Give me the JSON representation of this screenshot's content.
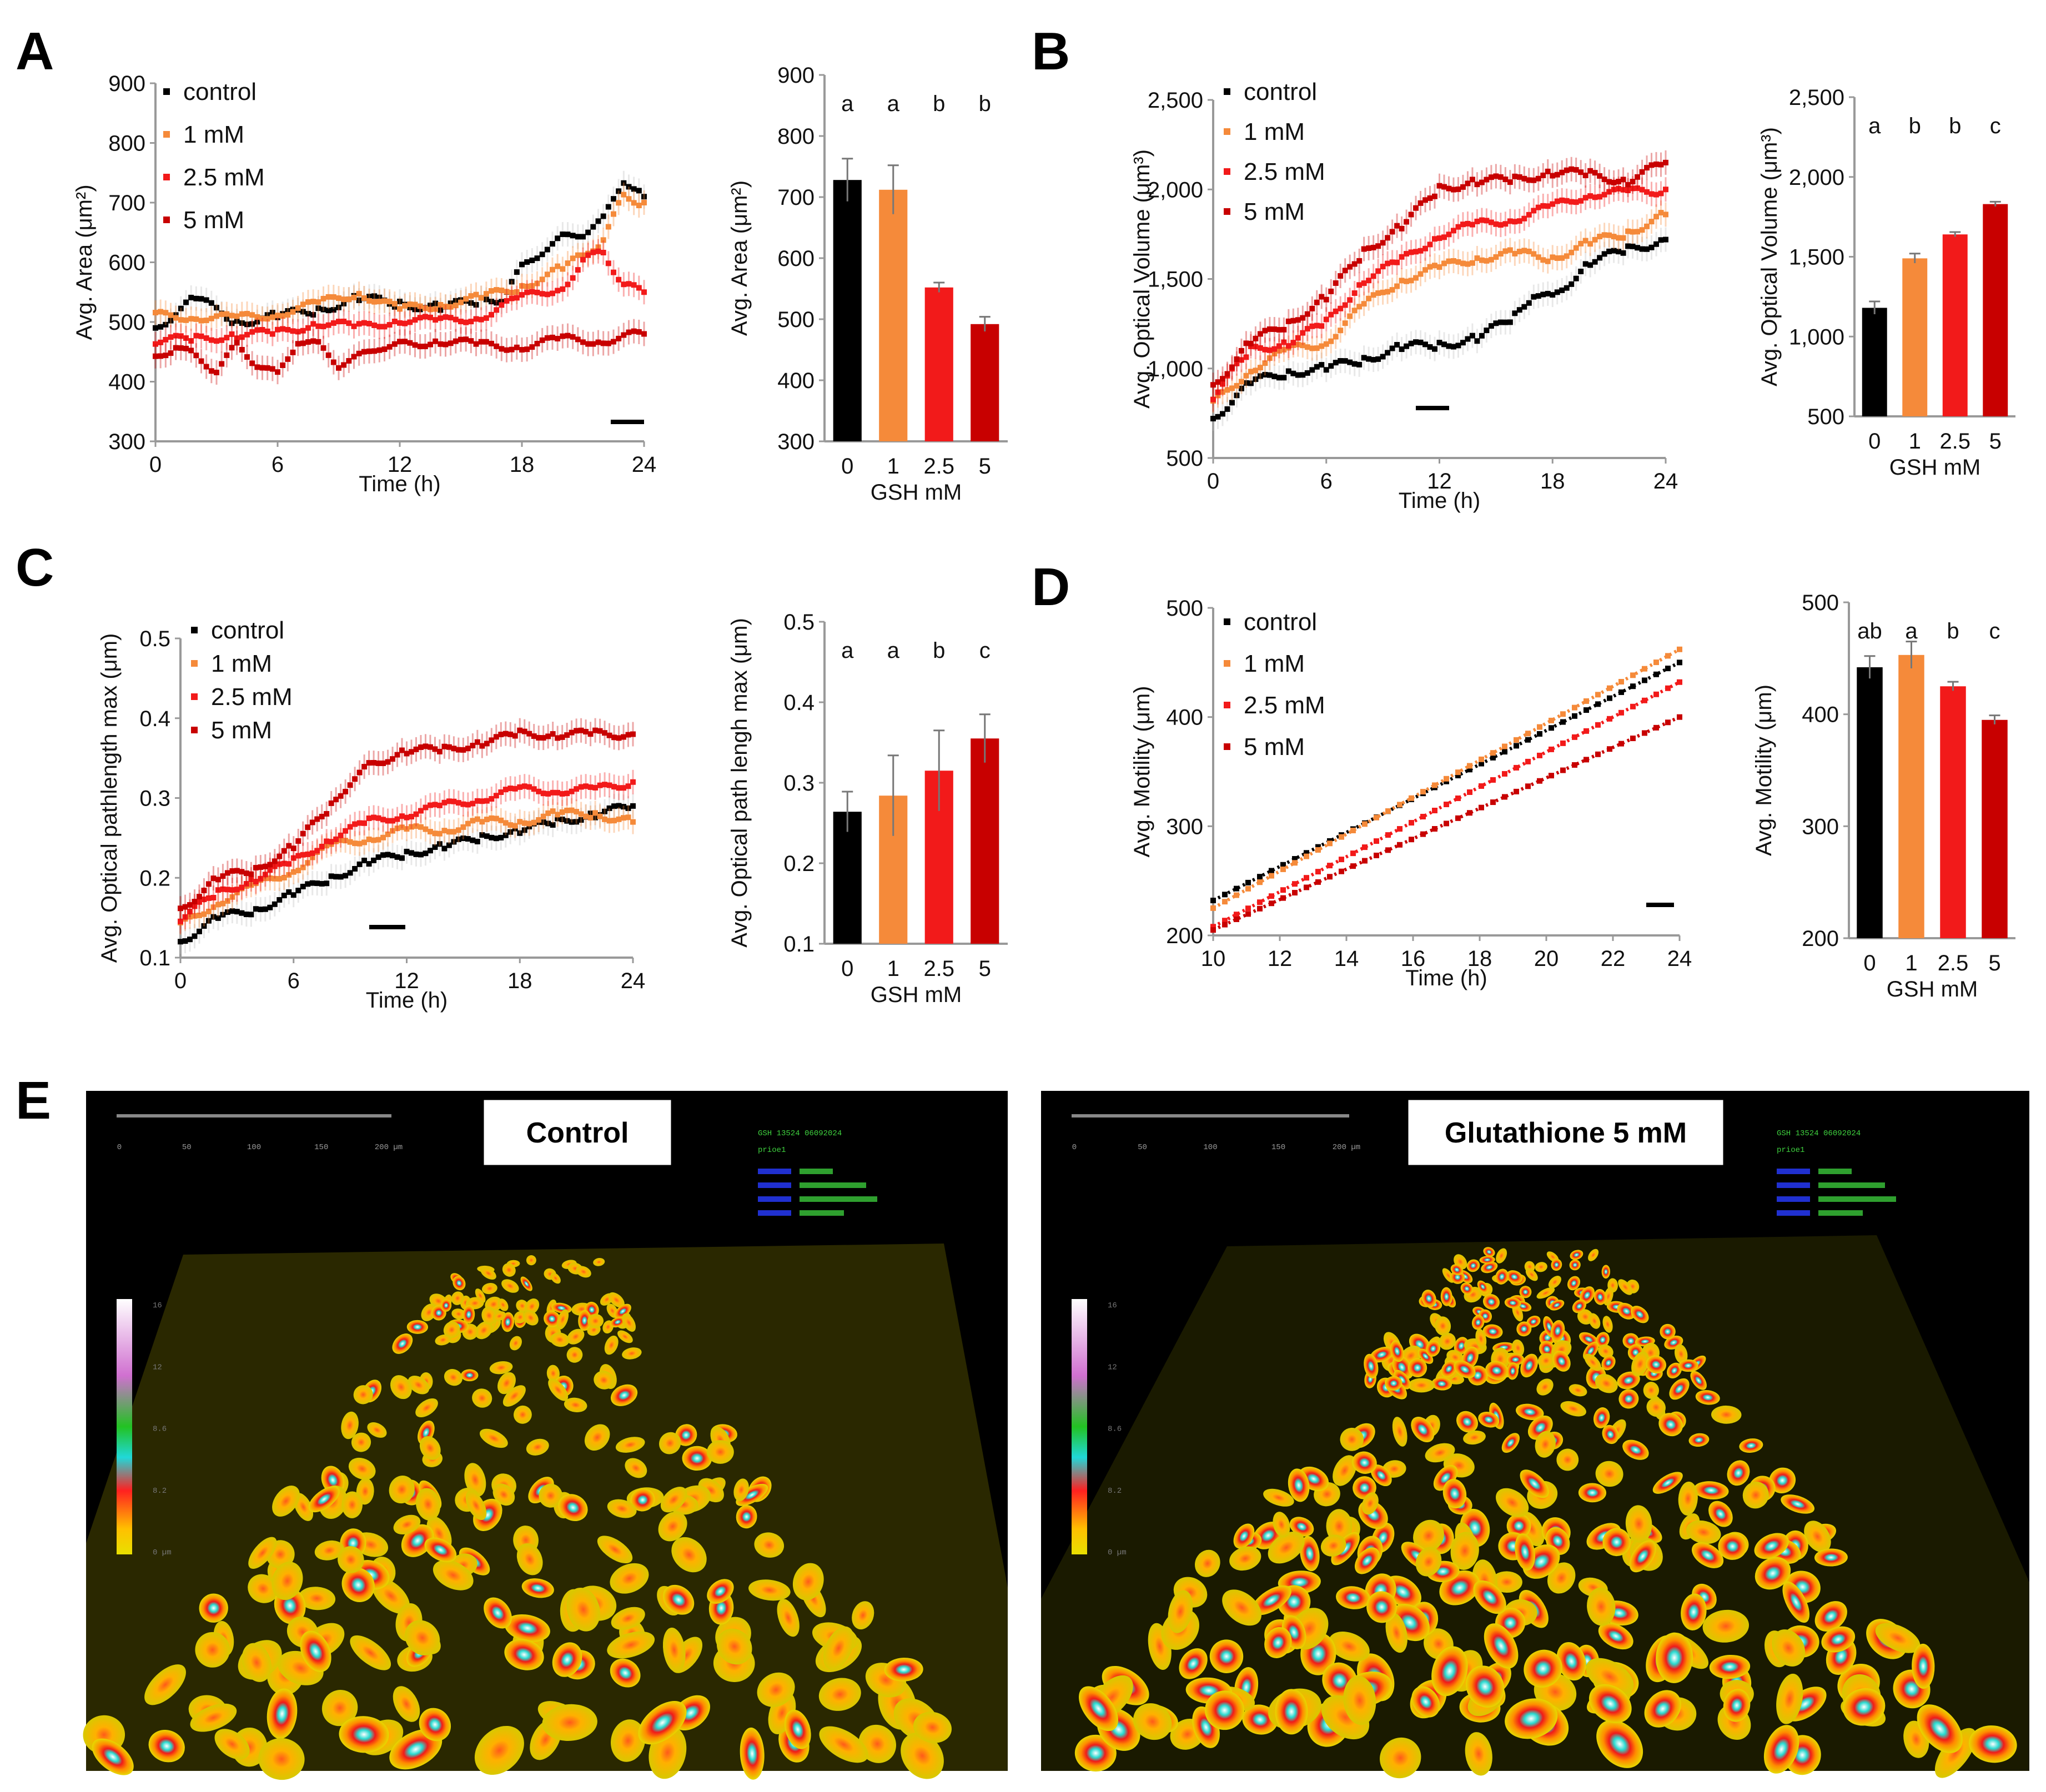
{
  "colors": {
    "control": "#000000",
    "mM1": "#f58a3a",
    "mM2_5": "#f21a1a",
    "mM5": "#c80000",
    "error_gray": "#bdbdbd"
  },
  "panel_letters": {
    "A": "A",
    "B": "B",
    "C": "C",
    "D": "D",
    "E": "E"
  },
  "chart_data": [
    {
      "id": "A-line",
      "type": "scatter",
      "xlabel": "Time (h)",
      "ylabel": "Avg. Area (μm²)",
      "xlim": [
        0,
        24
      ],
      "ylim": [
        300,
        900
      ],
      "xticks": [
        "0",
        "6",
        "12",
        "18",
        "24"
      ],
      "yticks": [
        "300",
        "400",
        "500",
        "600",
        "700",
        "800",
        "900"
      ],
      "legend": [
        "control",
        "1 mM",
        "2.5 mM",
        "5 mM"
      ],
      "series": [
        {
          "name": "control",
          "x": [
            0,
            2,
            4,
            6,
            8,
            10,
            12,
            14,
            16,
            17,
            18,
            19,
            20,
            21,
            22,
            23,
            24
          ],
          "y": [
            490,
            540,
            500,
            510,
            520,
            540,
            530,
            525,
            535,
            540,
            590,
            620,
            640,
            650,
            670,
            740,
            710
          ]
        },
        {
          "name": "1 mM",
          "x": [
            0,
            2,
            4,
            6,
            8,
            10,
            12,
            14,
            16,
            18,
            20,
            21,
            22,
            23,
            24
          ],
          "y": [
            510,
            510,
            505,
            515,
            530,
            550,
            520,
            530,
            540,
            560,
            590,
            610,
            640,
            710,
            700
          ]
        },
        {
          "name": "2.5 mM",
          "x": [
            0,
            2,
            4,
            6,
            8,
            10,
            12,
            14,
            16,
            18,
            20,
            21,
            22,
            23,
            24
          ],
          "y": [
            470,
            470,
            480,
            480,
            500,
            490,
            505,
            500,
            510,
            540,
            560,
            600,
            620,
            560,
            550
          ]
        },
        {
          "name": "5 mM",
          "x": [
            0,
            1,
            2,
            3,
            4,
            5,
            6,
            7,
            8,
            9,
            10,
            11,
            12,
            14,
            16,
            18,
            20,
            22,
            24
          ],
          "y": [
            440,
            460,
            440,
            420,
            460,
            430,
            410,
            470,
            460,
            430,
            440,
            460,
            460,
            470,
            460,
            460,
            470,
            470,
            480
          ]
        }
      ]
    },
    {
      "id": "A-bar",
      "type": "bar",
      "xlabel": "GSH mM",
      "ylabel": "Avg. Area (μm²)",
      "ylim": [
        300,
        900
      ],
      "yticks": [
        "300",
        "400",
        "500",
        "600",
        "700",
        "800",
        "900"
      ],
      "categories": [
        "0",
        "1",
        "2.5",
        "5"
      ],
      "values": [
        728,
        712,
        552,
        492
      ],
      "errors": [
        35,
        40,
        8,
        12
      ],
      "letters": [
        "a",
        "a",
        "b",
        "b"
      ]
    },
    {
      "id": "B-line",
      "type": "scatter",
      "xlabel": "Time (h)",
      "ylabel": "Avg. Optical Volume (μm³)",
      "xlim": [
        0,
        24
      ],
      "ylim": [
        500,
        2500
      ],
      "xticks": [
        "0",
        "6",
        "12",
        "18",
        "24"
      ],
      "yticks": [
        "500",
        "1,000",
        "1,500",
        "2,000",
        "2,500"
      ],
      "legend": [
        "control",
        "1 mM",
        "2.5 mM",
        "5 mM"
      ],
      "series": [
        {
          "name": "control",
          "x": [
            0,
            2,
            4,
            6,
            8,
            10,
            12,
            14,
            16,
            17,
            18,
            20,
            22,
            24
          ],
          "y": [
            720,
            920,
            980,
            1000,
            1050,
            1120,
            1130,
            1170,
            1290,
            1420,
            1390,
            1600,
            1660,
            1720
          ]
        },
        {
          "name": "1 mM",
          "x": [
            0,
            2,
            4,
            6,
            8,
            10,
            12,
            14,
            16,
            18,
            20,
            22,
            24
          ],
          "y": [
            800,
            1000,
            1100,
            1150,
            1350,
            1500,
            1560,
            1620,
            1640,
            1620,
            1700,
            1760,
            1860
          ]
        },
        {
          "name": "2.5 mM",
          "x": [
            0,
            2,
            4,
            6,
            8,
            10,
            12,
            14,
            16,
            18,
            20,
            22,
            24
          ],
          "y": [
            850,
            1100,
            1150,
            1250,
            1500,
            1600,
            1750,
            1800,
            1840,
            1900,
            1980,
            1980,
            2000
          ]
        },
        {
          "name": "5 mM",
          "x": [
            0,
            2,
            4,
            6,
            8,
            10,
            12,
            14,
            16,
            18,
            20,
            22,
            24
          ],
          "y": [
            900,
            1150,
            1250,
            1400,
            1650,
            1800,
            2000,
            2050,
            2050,
            2100,
            2080,
            2050,
            2150
          ]
        }
      ]
    },
    {
      "id": "B-bar",
      "type": "bar",
      "xlabel": "GSH mM",
      "ylabel": "Avg. Optical Volume (μm³)",
      "ylim": [
        500,
        2500
      ],
      "yticks": [
        "500",
        "1,000",
        "1,500",
        "2,000",
        "2,500"
      ],
      "categories": [
        "0",
        "1",
        "2.5",
        "5"
      ],
      "values": [
        1180,
        1490,
        1640,
        1830
      ],
      "errors": [
        40,
        30,
        15,
        15
      ],
      "letters": [
        "a",
        "b",
        "b",
        "c"
      ]
    },
    {
      "id": "C-line",
      "type": "scatter",
      "xlabel": "Time (h)",
      "ylabel": "Avg. Optical pathlength max (μm)",
      "xlim": [
        0,
        24
      ],
      "ylim": [
        0.1,
        0.5
      ],
      "xticks": [
        "0",
        "6",
        "12",
        "18",
        "24"
      ],
      "yticks": [
        "0.1",
        "0.2",
        "0.3",
        "0.4",
        "0.5"
      ],
      "legend": [
        "control",
        "1 mM",
        "2.5 mM",
        "5 mM"
      ],
      "series": [
        {
          "name": "control",
          "x": [
            0,
            2,
            4,
            6,
            8,
            10,
            12,
            14,
            16,
            18,
            20,
            22,
            24
          ],
          "y": [
            0.12,
            0.15,
            0.16,
            0.18,
            0.2,
            0.22,
            0.23,
            0.24,
            0.25,
            0.26,
            0.27,
            0.28,
            0.29
          ]
        },
        {
          "name": "1 mM",
          "x": [
            0,
            2,
            4,
            6,
            8,
            10,
            12,
            14,
            16,
            18,
            20,
            22,
            24
          ],
          "y": [
            0.14,
            0.17,
            0.19,
            0.21,
            0.24,
            0.25,
            0.26,
            0.26,
            0.27,
            0.27,
            0.28,
            0.28,
            0.27
          ]
        },
        {
          "name": "2.5 mM",
          "x": [
            0,
            2,
            4,
            6,
            8,
            10,
            12,
            14,
            16,
            18,
            20,
            22,
            24
          ],
          "y": [
            0.15,
            0.18,
            0.2,
            0.22,
            0.25,
            0.27,
            0.28,
            0.29,
            0.3,
            0.31,
            0.31,
            0.31,
            0.32
          ]
        },
        {
          "name": "5 mM",
          "x": [
            0,
            2,
            4,
            6,
            8,
            9,
            10,
            12,
            14,
            16,
            18,
            20,
            22,
            24
          ],
          "y": [
            0.16,
            0.2,
            0.21,
            0.24,
            0.29,
            0.32,
            0.34,
            0.36,
            0.36,
            0.37,
            0.38,
            0.38,
            0.38,
            0.38
          ]
        }
      ]
    },
    {
      "id": "C-bar",
      "type": "bar",
      "xlabel": "GSH mM",
      "ylabel": "Avg. Optical path lengh max (μm)",
      "ylim": [
        0.1,
        0.5
      ],
      "yticks": [
        "0.1",
        "0.2",
        "0.3",
        "0.4",
        "0.5"
      ],
      "categories": [
        "0",
        "1",
        "2.5",
        "5"
      ],
      "values": [
        0.264,
        0.284,
        0.315,
        0.355
      ],
      "errors": [
        0.025,
        0.05,
        0.05,
        0.03
      ],
      "letters": [
        "a",
        "a",
        "b",
        "c"
      ]
    },
    {
      "id": "D-line",
      "type": "line",
      "xlabel": "Time (h)",
      "ylabel": "Avg. Motility (μm)",
      "xlim": [
        10,
        24
      ],
      "ylim": [
        200,
        500
      ],
      "xticks": [
        "10",
        "12",
        "14",
        "16",
        "18",
        "20",
        "22",
        "24"
      ],
      "yticks": [
        "200",
        "300",
        "400",
        "500"
      ],
      "legend": [
        "control",
        "1 mM",
        "2.5 mM",
        "5 mM"
      ],
      "series": [
        {
          "name": "control",
          "x": [
            10,
            24
          ],
          "y": [
            232,
            450
          ]
        },
        {
          "name": "1 mM",
          "x": [
            10,
            24
          ],
          "y": [
            225,
            462
          ]
        },
        {
          "name": "2.5 mM",
          "x": [
            10,
            24
          ],
          "y": [
            208,
            432
          ]
        },
        {
          "name": "5 mM",
          "x": [
            10,
            24
          ],
          "y": [
            205,
            400
          ]
        }
      ]
    },
    {
      "id": "D-bar",
      "type": "bar",
      "xlabel": "GSH mM",
      "ylabel": "Avg. Motility (μm)",
      "ylim": [
        200,
        500
      ],
      "yticks": [
        "200",
        "300",
        "400",
        "500"
      ],
      "categories": [
        "0",
        "1",
        "2.5",
        "5"
      ],
      "values": [
        442,
        453,
        425,
        395
      ],
      "errors": [
        10,
        12,
        4,
        4
      ],
      "letters": [
        "ab",
        "a",
        "b",
        "c"
      ]
    }
  ],
  "images": {
    "left": {
      "title": "Control",
      "scale_ticks": [
        "0",
        "50",
        "100",
        "150",
        "200 µm"
      ],
      "meta_line1": "GSH 13524 06092024",
      "meta_line2": "prioe1",
      "colorbar_ticks": [
        "16",
        "12",
        "8.6",
        "8.2",
        "0 µm"
      ]
    },
    "right": {
      "title": "Glutathione 5 mM",
      "scale_ticks": [
        "0",
        "50",
        "100",
        "150",
        "200 µm"
      ],
      "meta_line1": "GSH 13524 06092024",
      "meta_line2": "prioe1",
      "colorbar_ticks": [
        "16",
        "12",
        "8.6",
        "8.2",
        "0 µm"
      ]
    }
  }
}
